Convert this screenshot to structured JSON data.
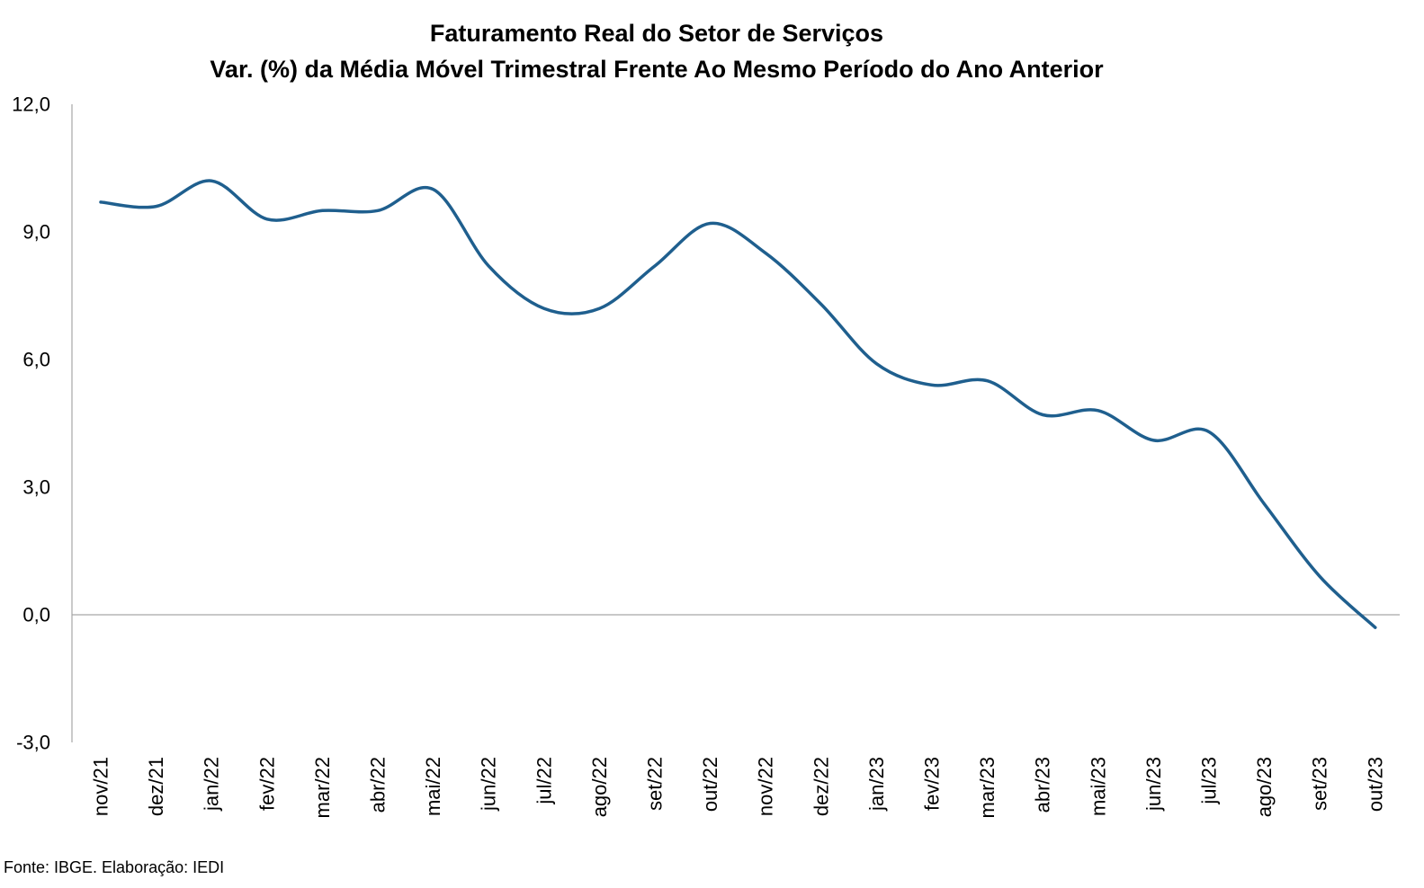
{
  "chart_data": {
    "type": "line",
    "title": "Faturamento Real do Setor de Serviços",
    "subtitle": "Var. (%) da Média Móvel Trimestral Frente Ao Mesmo Período do Ano Anterior",
    "xlabel": "",
    "ylabel": "",
    "categories": [
      "nov/21",
      "dez/21",
      "jan/22",
      "fev/22",
      "mar/22",
      "abr/22",
      "mai/22",
      "jun/22",
      "jul/22",
      "ago/22",
      "set/22",
      "out/22",
      "nov/22",
      "dez/22",
      "jan/23",
      "fev/23",
      "mar/23",
      "abr/23",
      "mai/23",
      "jun/23",
      "jul/23",
      "ago/23",
      "set/23",
      "out/23"
    ],
    "series": [
      {
        "values": [
          9.7,
          9.6,
          10.2,
          9.3,
          9.5,
          9.5,
          10.0,
          8.2,
          7.2,
          7.2,
          8.2,
          9.2,
          8.5,
          7.3,
          5.9,
          5.4,
          5.5,
          4.7,
          4.8,
          4.1,
          4.3,
          2.6,
          0.9,
          -0.3
        ],
        "color": "#1f5f8e"
      }
    ],
    "ylim": [
      -3.0,
      12.0
    ],
    "yticks": [
      "12,0",
      "9,0",
      "6,0",
      "3,0",
      "0,0",
      "-3,0"
    ],
    "ytick_values": [
      12,
      9,
      6,
      3,
      0,
      -3
    ],
    "grid": false,
    "legend": "none",
    "source": "Fonte: IBGE. Elaboração: IEDI"
  }
}
